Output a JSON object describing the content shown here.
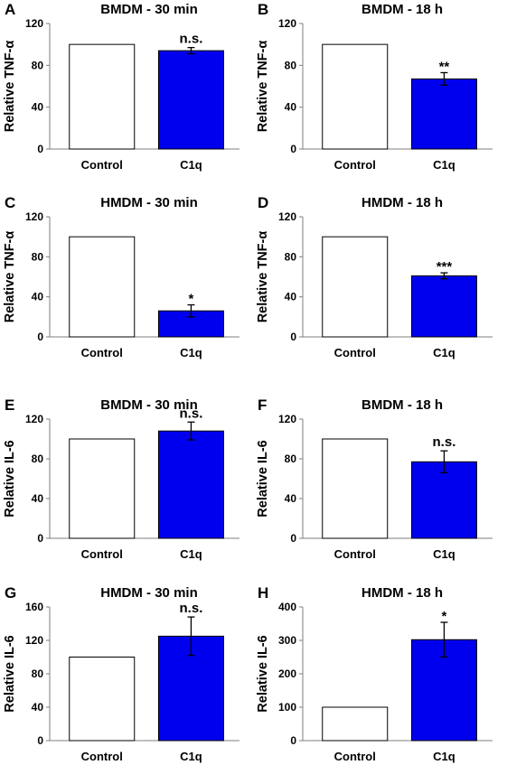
{
  "chart_data": [
    {
      "type": "bar",
      "letter": "A",
      "title": "BMDM - 30 min",
      "ylabel": "Relative TNF-α",
      "categories": [
        "Control",
        "C1q"
      ],
      "values": [
        100,
        94
      ],
      "errors": [
        0,
        3
      ],
      "significance": [
        "",
        "n.s."
      ],
      "ylim": [
        0,
        120
      ],
      "yticks": [
        0,
        40,
        80,
        120
      ],
      "colors": [
        "#ffffff",
        "#0000ee"
      ]
    },
    {
      "type": "bar",
      "letter": "B",
      "title": "BMDM - 18 h",
      "ylabel": "Relative TNF-α",
      "categories": [
        "Control",
        "C1q"
      ],
      "values": [
        100,
        67
      ],
      "errors": [
        0,
        6
      ],
      "significance": [
        "",
        "**"
      ],
      "ylim": [
        0,
        120
      ],
      "yticks": [
        0,
        40,
        80,
        120
      ],
      "colors": [
        "#ffffff",
        "#0000ee"
      ]
    },
    {
      "type": "bar",
      "letter": "C",
      "title": "HMDM - 30 min",
      "ylabel": "Relative TNF-α",
      "categories": [
        "Control",
        "C1q"
      ],
      "values": [
        100,
        26
      ],
      "errors": [
        0,
        6
      ],
      "significance": [
        "",
        "*"
      ],
      "ylim": [
        0,
        120
      ],
      "yticks": [
        0,
        40,
        80,
        120
      ],
      "colors": [
        "#ffffff",
        "#0000ee"
      ]
    },
    {
      "type": "bar",
      "letter": "D",
      "title": "HMDM - 18 h",
      "ylabel": "Relative TNF-α",
      "categories": [
        "Control",
        "C1q"
      ],
      "values": [
        100,
        61
      ],
      "errors": [
        0,
        3
      ],
      "significance": [
        "",
        "***"
      ],
      "ylim": [
        0,
        120
      ],
      "yticks": [
        0,
        40,
        80,
        120
      ],
      "colors": [
        "#ffffff",
        "#0000ee"
      ]
    },
    {
      "type": "bar",
      "letter": "E",
      "title": "BMDM - 30 min",
      "ylabel": "Relative IL-6",
      "categories": [
        "Control",
        "C1q"
      ],
      "values": [
        100,
        108
      ],
      "errors": [
        0,
        9
      ],
      "significance": [
        "",
        "n.s."
      ],
      "ylim": [
        0,
        120
      ],
      "yticks": [
        0,
        40,
        80,
        120
      ],
      "colors": [
        "#ffffff",
        "#0000ee"
      ]
    },
    {
      "type": "bar",
      "letter": "F",
      "title": "BMDM - 18 h",
      "ylabel": "Relative IL-6",
      "categories": [
        "Control",
        "C1q"
      ],
      "values": [
        100,
        77
      ],
      "errors": [
        0,
        11
      ],
      "significance": [
        "",
        "n.s."
      ],
      "ylim": [
        0,
        120
      ],
      "yticks": [
        0,
        40,
        80,
        120
      ],
      "colors": [
        "#ffffff",
        "#0000ee"
      ]
    },
    {
      "type": "bar",
      "letter": "G",
      "title": "HMDM - 30 min",
      "ylabel": "Relative IL-6",
      "categories": [
        "Control",
        "C1q"
      ],
      "values": [
        100,
        125
      ],
      "errors": [
        0,
        23
      ],
      "significance": [
        "",
        "n.s."
      ],
      "ylim": [
        0,
        160
      ],
      "yticks": [
        0,
        40,
        80,
        120,
        160
      ],
      "colors": [
        "#ffffff",
        "#0000ee"
      ]
    },
    {
      "type": "bar",
      "letter": "H",
      "title": "HMDM - 18 h",
      "ylabel": "Relative IL-6",
      "categories": [
        "Control",
        "C1q"
      ],
      "values": [
        100,
        302
      ],
      "errors": [
        0,
        52
      ],
      "significance": [
        "",
        "*"
      ],
      "ylim": [
        0,
        400
      ],
      "yticks": [
        0,
        100,
        200,
        300,
        400
      ],
      "colors": [
        "#ffffff",
        "#0000ee"
      ]
    }
  ]
}
